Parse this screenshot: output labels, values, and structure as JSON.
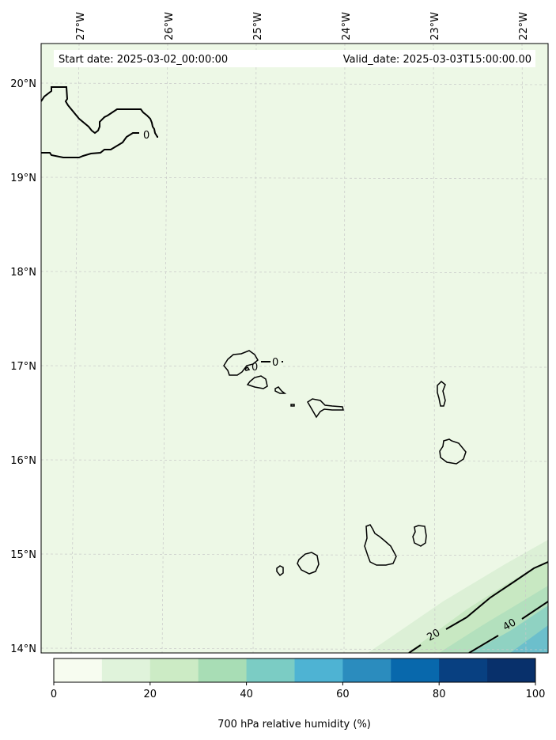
{
  "header": {
    "start_date": "Start date: 2025-03-02_00:00:00",
    "valid_date": "Valid_date: 2025-03-03T15:00:00.00"
  },
  "axes": {
    "lon_labels": [
      "27°W",
      "26°W",
      "25°W",
      "24°W",
      "23°W",
      "22°W"
    ],
    "lat_labels": [
      "20°N",
      "19°N",
      "18°N",
      "17°N",
      "16°N",
      "15°N",
      "14°N"
    ]
  },
  "contour_labels": [
    "0",
    "0",
    "0",
    "20",
    "40"
  ],
  "colorbar": {
    "label": "700 hPa relative humidity (%)",
    "ticks": [
      "0",
      "20",
      "40",
      "60",
      "80",
      "100"
    ],
    "colors": [
      "#f7fcf0",
      "#e0f3db",
      "#ccebc5",
      "#a8ddb5",
      "#7bccc4",
      "#4eb3d3",
      "#2b8cbe",
      "#0868ac",
      "#084081",
      "#08306b"
    ],
    "min": 0,
    "max": 100
  },
  "field_colors": {
    "background": "#edf8e6",
    "band_10_20": "#dcf0d6",
    "band_20_30": "#c8e8c2",
    "band_30_40": "#b3e0bd",
    "band_40_50": "#8fd2c2",
    "band_50_60": "#6cbfcc"
  }
}
